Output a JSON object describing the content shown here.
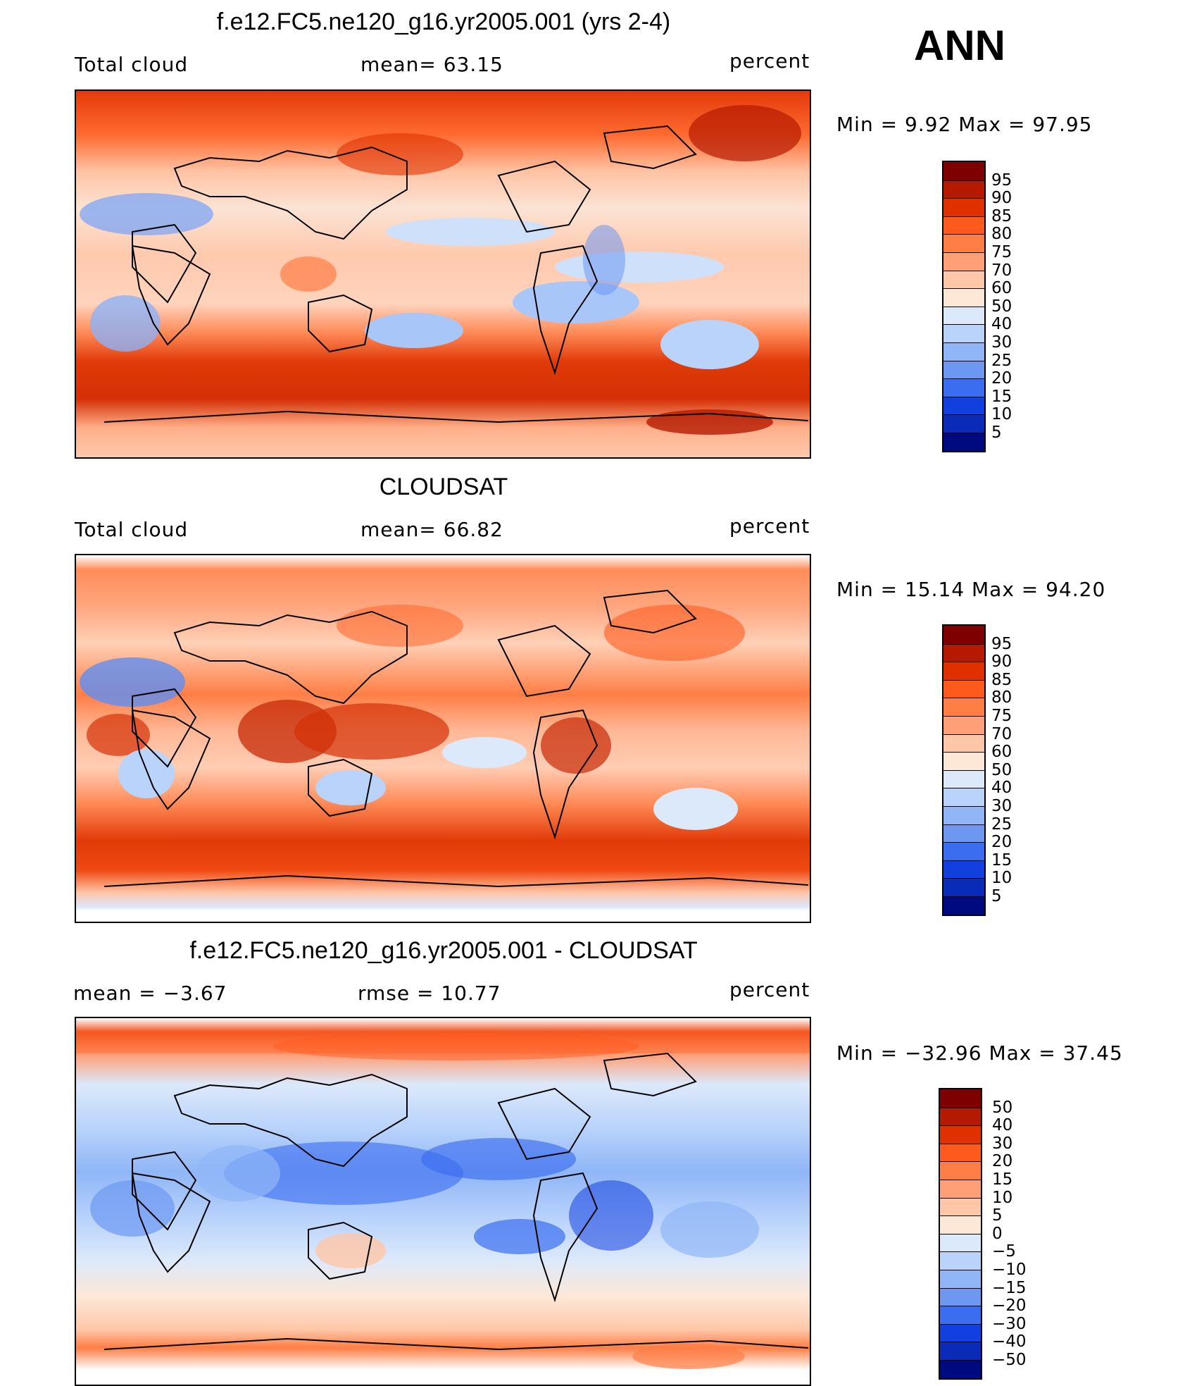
{
  "season": "ANN",
  "panels": [
    {
      "title": "f.e12.FC5.ne120_g16.yr2005.001 (yrs 2-4)",
      "left_label": "Total cloud",
      "center_label": "mean=   63.15",
      "right_label": "percent",
      "minmax": "Min =    9.92 Max =   97.95",
      "colorbar_labels": [
        "95",
        "90",
        "85",
        "80",
        "75",
        "70",
        "60",
        "50",
        "40",
        "30",
        "25",
        "20",
        "15",
        "10",
        "5"
      ]
    },
    {
      "title": "CLOUDSAT",
      "left_label": "Total cloud",
      "center_label": "mean=   66.82",
      "right_label": "percent",
      "minmax": "Min =  15.14 Max =  94.20",
      "colorbar_labels": [
        "95",
        "90",
        "85",
        "80",
        "75",
        "70",
        "60",
        "50",
        "40",
        "30",
        "25",
        "20",
        "15",
        "10",
        "5"
      ]
    },
    {
      "title": "f.e12.FC5.ne120_g16.yr2005.001 - CLOUDSAT",
      "left_label": "mean =   −3.67",
      "center_label": "rmse =   10.77",
      "right_label": "percent",
      "minmax": "Min = −32.96 Max =   37.45",
      "colorbar_labels": [
        "50",
        "40",
        "30",
        "20",
        "15",
        "10",
        "5",
        "0",
        "−5",
        "−10",
        "−15",
        "−20",
        "−30",
        "−40",
        "−50"
      ]
    }
  ],
  "colors": {
    "abs_scale": [
      "#7f0000",
      "#b51a00",
      "#e03000",
      "#ff5a1e",
      "#ff7e46",
      "#ff9f78",
      "#ffc7a8",
      "#fde8d8",
      "#dce9fb",
      "#b9d3fb",
      "#90b6f7",
      "#6c98f2",
      "#3b6df0",
      "#1240e0",
      "#0a2ab8",
      "#000a80"
    ],
    "diff_scale": [
      "#7f0000",
      "#b51a00",
      "#e03000",
      "#ff5a1e",
      "#ff7e46",
      "#ff9f78",
      "#ffc7a8",
      "#fde8d8",
      "#dce9fb",
      "#b9d3fb",
      "#90b6f7",
      "#6c98f2",
      "#3b6df0",
      "#1240e0",
      "#0a2ab8",
      "#000a80"
    ]
  }
}
